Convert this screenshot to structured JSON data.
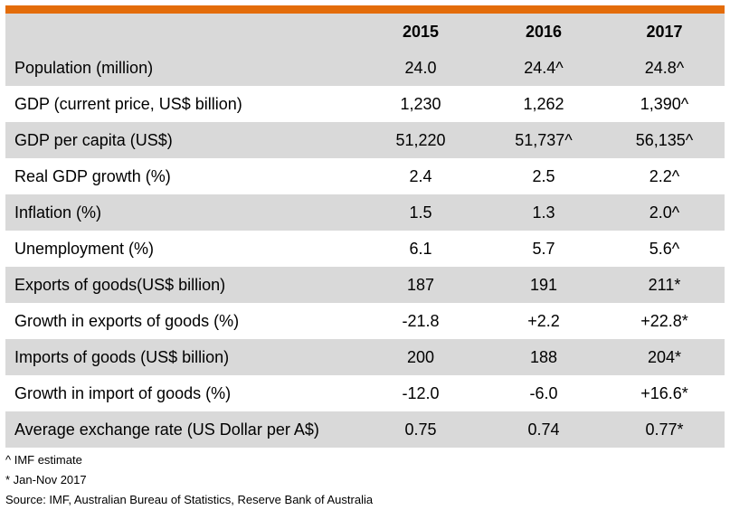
{
  "colors": {
    "accent_bar": "#e36c0a",
    "shaded_row": "#d9d9d9"
  },
  "table": {
    "headers": [
      "",
      "2015",
      "2016",
      "2017"
    ],
    "rows": [
      [
        "Population (million)",
        "24.0",
        "24.4^",
        "24.8^"
      ],
      [
        "GDP (current price, US$ billion)",
        "1,230",
        "1,262",
        "1,390^"
      ],
      [
        "GDP per capita (US$)",
        "51,220",
        "51,737^",
        "56,135^"
      ],
      [
        "Real GDP growth (%)",
        "2.4",
        "2.5",
        "2.2^"
      ],
      [
        "Inflation (%)",
        "1.5",
        "1.3",
        "2.0^"
      ],
      [
        "Unemployment (%)",
        "6.1",
        "5.7",
        "5.6^"
      ],
      [
        "Exports of goods(US$ billion)",
        "187",
        "191",
        "211*"
      ],
      [
        "Growth in exports of goods (%)",
        "-21.8",
        "+2.2",
        "+22.8*"
      ],
      [
        "Imports of goods  (US$ billion)",
        "200",
        "188",
        "204*"
      ],
      [
        "Growth in import of goods (%)",
        "-12.0",
        "-6.0",
        "+16.6*"
      ],
      [
        "Average exchange rate (US Dollar per A$)",
        "0.75",
        "0.74",
        "0.77*"
      ]
    ]
  },
  "notes": {
    "imf": "^ IMF estimate",
    "jan_nov": "* Jan-Nov 2017",
    "source": "Source: IMF, Australian Bureau of Statistics, Reserve Bank of Australia"
  }
}
